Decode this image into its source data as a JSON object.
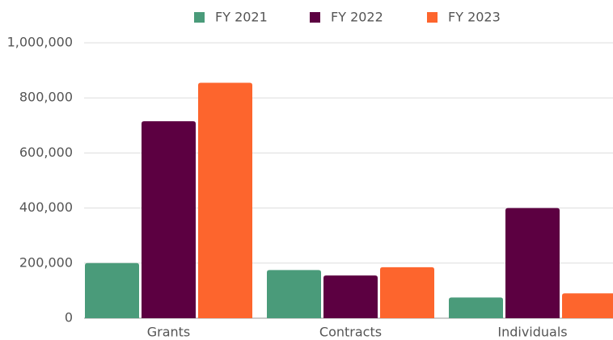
{
  "chart_data": {
    "type": "bar",
    "categories": [
      "Grants",
      "Contracts",
      "Individuals"
    ],
    "series": [
      {
        "name": "FY 2021",
        "color": "#4a9b7a",
        "values": [
          200000,
          175000,
          75000
        ]
      },
      {
        "name": "FY 2022",
        "color": "#5c0041",
        "values": [
          715000,
          155000,
          400000
        ]
      },
      {
        "name": "FY 2023",
        "color": "#fd652d",
        "values": [
          855000,
          185000,
          90000
        ]
      }
    ],
    "ylim": [
      0,
      1000000
    ],
    "yticks": [
      0,
      {
        "value": 200000,
        "label": "200,000"
      },
      {
        "value": 400000,
        "label": "400,000"
      },
      {
        "value": 600000,
        "label": "600,000"
      },
      {
        "value": 800000,
        "label": "800,000"
      },
      {
        "value": 1000000,
        "label": "1,000,000"
      }
    ],
    "grid": true,
    "legend": "top"
  }
}
